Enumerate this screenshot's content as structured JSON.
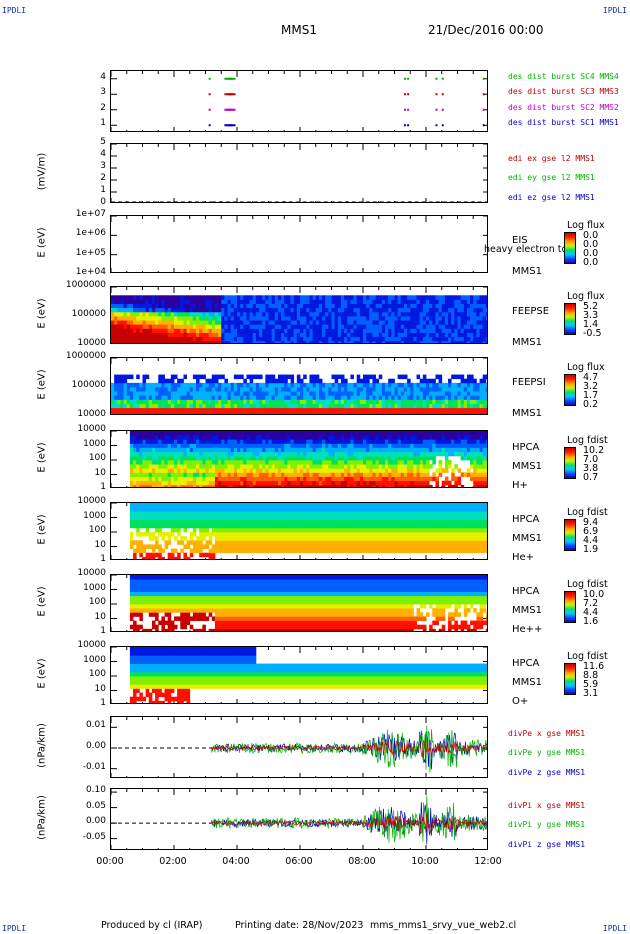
{
  "corners": {
    "tl": "IPDLI",
    "tr": "IPDLI",
    "bl": "IPDLI",
    "br": "IPDLI"
  },
  "header": {
    "spacecraft": "MMS1",
    "date": "21/Dec/2016 00:00"
  },
  "footer": {
    "producer": "Produced by cl (IRAP)",
    "printing": "Printing date: 28/Nov/2023",
    "file": "mms_mms1_srvy_vue_web2.cl"
  },
  "colors": {
    "blue": "#0000c0",
    "green": "#00b000",
    "red": "#c00000",
    "magenta": "#c000c0",
    "axis": "#000000"
  },
  "chart_data": [
    {
      "type": "scatter",
      "title": "",
      "ylabel": "",
      "yticks": [
        "1",
        "2",
        "3",
        "4"
      ],
      "ylim": [
        0.5,
        4.5
      ],
      "series": [
        {
          "name": "des dist burst SC1 MMS1",
          "color": "#0000c0",
          "y": 1,
          "x_hours": [
            3.1,
            3.6,
            3.7,
            9.3,
            9.4,
            10.3,
            10.5,
            11.8
          ]
        },
        {
          "name": "des dist burst SC2 MMS2",
          "color": "#c000c0",
          "y": 2,
          "x_hours": [
            3.1,
            3.6,
            3.7,
            9.3,
            9.4,
            10.3,
            10.5,
            11.8
          ]
        },
        {
          "name": "des dist burst SC3 MMS3",
          "color": "#c00000",
          "y": 3,
          "x_hours": [
            3.1,
            3.6,
            3.7,
            9.3,
            9.4,
            10.3,
            10.5,
            11.8
          ]
        },
        {
          "name": "des dist burst SC4 MMS4",
          "color": "#00b000",
          "y": 4,
          "x_hours": [
            3.1,
            3.6,
            3.7,
            9.3,
            9.4,
            10.3,
            10.5,
            11.8
          ]
        }
      ]
    },
    {
      "type": "line",
      "ylabel": "(mV/m)",
      "yticks": [
        "0",
        "1",
        "2",
        "3",
        "4",
        "5"
      ],
      "ylim": [
        0,
        5
      ],
      "series": [
        {
          "name": "edi ex gse l2 MMS1",
          "color": "#c00000"
        },
        {
          "name": "edi ey gse l2 MMS1",
          "color": "#00b000"
        },
        {
          "name": "edi ez gse l2 MMS1",
          "color": "#0000c0"
        }
      ]
    },
    {
      "type": "heatmap",
      "ylabel": "E (eV)",
      "yticks": [
        "1e+04",
        "1e+05",
        "1e+06",
        "1e+07"
      ],
      "instrument": [
        "EIS",
        "MMS1"
      ],
      "overlay_text": "heavy electron to",
      "colorbar": {
        "title": "Log flux",
        "values": [
          "0.0",
          "0.0",
          "0.0",
          "0.0"
        ]
      }
    },
    {
      "type": "heatmap",
      "ylabel": "E (eV)",
      "yticks": [
        "10000",
        "100000",
        "1000000"
      ],
      "instrument": [
        "FEEPSE",
        "MMS1"
      ],
      "colorbar": {
        "title": "Log flux",
        "values": [
          "5.2",
          "3.3",
          "1.4",
          "-0.5"
        ]
      }
    },
    {
      "type": "heatmap",
      "ylabel": "E (eV)",
      "yticks": [
        "10000",
        "100000",
        "1000000"
      ],
      "instrument": [
        "FEEPSI",
        "MMS1"
      ],
      "colorbar": {
        "title": "Log flux",
        "values": [
          "4.7",
          "3.2",
          "1.7",
          "0.2"
        ]
      }
    },
    {
      "type": "heatmap",
      "ylabel": "E (eV)",
      "yticks": [
        "1",
        "10",
        "100",
        "1000",
        "10000"
      ],
      "instrument": [
        "HPCA",
        "MMS1",
        "H+"
      ],
      "colorbar": {
        "title": "Log fdist",
        "values": [
          "10.2",
          "7.0",
          "3.8",
          "0.7"
        ]
      }
    },
    {
      "type": "heatmap",
      "ylabel": "E (eV)",
      "yticks": [
        "1",
        "10",
        "100",
        "1000",
        "10000"
      ],
      "instrument": [
        "HPCA",
        "MMS1",
        "He+"
      ],
      "colorbar": {
        "title": "Log fdist",
        "values": [
          "9.4",
          "6.9",
          "4.4",
          "1.9"
        ]
      }
    },
    {
      "type": "heatmap",
      "ylabel": "E (eV)",
      "yticks": [
        "1",
        "10",
        "100",
        "1000",
        "10000"
      ],
      "instrument": [
        "HPCA",
        "MMS1",
        "He++"
      ],
      "colorbar": {
        "title": "Log fdist",
        "values": [
          "10.0",
          "7.2",
          "4.4",
          "1.6"
        ]
      }
    },
    {
      "type": "heatmap",
      "ylabel": "E (eV)",
      "yticks": [
        "1",
        "10",
        "100",
        "1000",
        "10000"
      ],
      "instrument": [
        "HPCA",
        "MMS1",
        "O+"
      ],
      "colorbar": {
        "title": "Log fdist",
        "values": [
          "11.6",
          "8.8",
          "5.9",
          "3.1"
        ]
      }
    },
    {
      "type": "line",
      "ylabel": "(nPa/km)",
      "yticks": [
        "-0.01",
        "0.00",
        "0.01"
      ],
      "ylim": [
        -0.015,
        0.015
      ],
      "series": [
        {
          "name": "divPe x gse MMS1",
          "color": "#c00000"
        },
        {
          "name": "divPe y gse MMS1",
          "color": "#00b000"
        },
        {
          "name": "divPe z gse MMS1",
          "color": "#0000c0"
        }
      ]
    },
    {
      "type": "line",
      "ylabel": "(nPa/km)",
      "yticks": [
        "-0.05",
        "0.00",
        "0.05",
        "0.10"
      ],
      "ylim": [
        -0.09,
        0.11
      ],
      "series": [
        {
          "name": "divPi x gse MMS1",
          "color": "#c00000"
        },
        {
          "name": "divPi y gse MMS1",
          "color": "#00b000"
        },
        {
          "name": "divPi z gse MMS1",
          "color": "#0000c0"
        }
      ]
    }
  ],
  "xaxis": {
    "ticks": [
      "00:00",
      "02:00",
      "04:00",
      "06:00",
      "08:00",
      "10:00",
      "12:00"
    ],
    "xlim_hours": [
      0,
      12
    ]
  }
}
